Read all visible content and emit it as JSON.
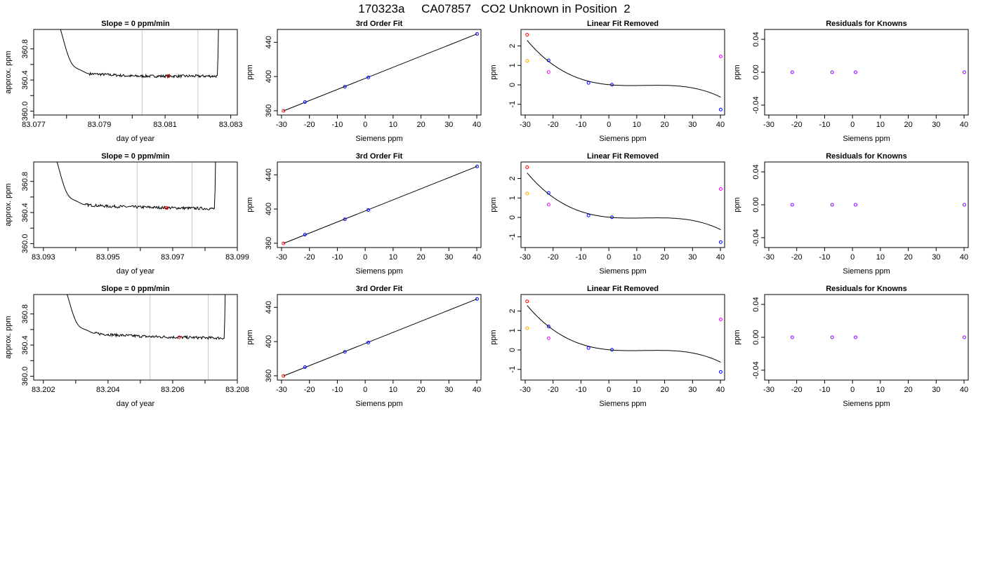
{
  "figure_title": "170323a     CA07857   CO2 Unknown in Position  2",
  "colors": {
    "trace": "#000000",
    "marker_window": "#c8c8c8",
    "point_red": "#ff0000",
    "point_orange": "#ffa500",
    "point_blue": "#0000ff",
    "point_magenta": "#ff00ff",
    "point_purple": "#7f00ff",
    "fit_line": "#000000"
  },
  "chart_data": [
    {
      "row": 0,
      "col": 0,
      "type": "line",
      "title": "Slope =  0  ppm/min",
      "xlabel": "day of year",
      "ylabel": "approx. ppm",
      "xlim": [
        83.077,
        83.0832
      ],
      "ylim": [
        359.95,
        361.05
      ],
      "xticks": [
        "83.077",
        "83.079",
        "83.081",
        "83.083"
      ],
      "xminor": [
        83.078,
        83.08,
        83.082
      ],
      "yticks": [
        "360.0",
        "360.4",
        "360.8"
      ],
      "window": [
        83.0803,
        83.082
      ],
      "trace": {
        "rise_start": 83.0776,
        "plateau_start": 83.0787,
        "plateau_end": 83.0826,
        "rise_end": 83.08265,
        "levels": [
          [
            83.0787,
            360.48
          ],
          [
            83.0792,
            360.47
          ],
          [
            83.08,
            360.45
          ],
          [
            83.081,
            360.45
          ],
          [
            83.0826,
            360.45
          ]
        ]
      },
      "marker": {
        "x": 83.0811,
        "y": 360.45,
        "color": "red"
      }
    },
    {
      "row": 0,
      "col": 1,
      "type": "scatter",
      "title": "3rd Order Fit",
      "xlabel": "Siemens ppm",
      "ylabel": "ppm",
      "xlim": [
        -31.5,
        41.5
      ],
      "ylim": [
        355,
        455
      ],
      "xticks": [
        "-30",
        "-20",
        "-10",
        "0",
        "10",
        "20",
        "30",
        "40"
      ],
      "yticks": [
        "360",
        "400",
        "440"
      ],
      "points": [
        {
          "x": -29.3,
          "y": 359.8,
          "color": "red"
        },
        {
          "x": -21.6,
          "y": 370.2,
          "color": "blue"
        },
        {
          "x": -7.3,
          "y": 388.0,
          "color": "blue"
        },
        {
          "x": 1.1,
          "y": 398.9,
          "color": "blue"
        },
        {
          "x": 40.1,
          "y": 449.8,
          "color": "blue"
        }
      ],
      "fit_line": [
        [
          -29.3,
          359.8
        ],
        [
          40.1,
          449.8
        ]
      ]
    },
    {
      "row": 0,
      "col": 2,
      "type": "scatter",
      "title": "Linear Fit Removed",
      "xlabel": "Siemens ppm",
      "ylabel": "ppm",
      "xlim": [
        -31.5,
        41.5
      ],
      "ylim": [
        -1.55,
        2.85
      ],
      "xticks": [
        "-30",
        "-20",
        "-10",
        "0",
        "10",
        "20",
        "30",
        "40"
      ],
      "yticks": [
        "-1",
        "0",
        "1",
        "2"
      ],
      "points": [
        {
          "x": -29.3,
          "y": 2.58,
          "color": "red"
        },
        {
          "x": -29.3,
          "y": 1.23,
          "color": "orange"
        },
        {
          "x": -21.6,
          "y": 1.26,
          "color": "blue"
        },
        {
          "x": -21.6,
          "y": 0.66,
          "color": "magenta"
        },
        {
          "x": -7.3,
          "y": 0.1,
          "color": "blue"
        },
        {
          "x": 1.1,
          "y": 0.01,
          "color": "blue"
        },
        {
          "x": 40.1,
          "y": -1.27,
          "color": "blue"
        },
        {
          "x": 40.1,
          "y": 1.46,
          "color": "magenta"
        }
      ],
      "cubic_coeffs": [
        0.01,
        -0.0136,
        0.00124,
        -3.24e-05
      ]
    },
    {
      "row": 0,
      "col": 3,
      "type": "scatter",
      "title": "Residuals for Knowns",
      "xlabel": "Siemens ppm",
      "ylabel": "ppm",
      "xlim": [
        -31.5,
        41.5
      ],
      "ylim": [
        -0.052,
        0.052
      ],
      "xticks": [
        "-30",
        "-20",
        "-10",
        "0",
        "10",
        "20",
        "30",
        "40"
      ],
      "yticks": [
        "-0.04",
        "0.00",
        "0.04"
      ],
      "points": [
        {
          "x": -21.6,
          "y": 0.0,
          "color": "purple"
        },
        {
          "x": -7.3,
          "y": 0.0,
          "color": "purple"
        },
        {
          "x": 1.1,
          "y": 0.0,
          "color": "purple"
        },
        {
          "x": 40.1,
          "y": 0.0,
          "color": "purple"
        }
      ]
    },
    {
      "row": 1,
      "col": 0,
      "type": "line",
      "title": "Slope =  0  ppm/min",
      "xlabel": "day of year",
      "ylabel": "approx. ppm",
      "xlim": [
        83.0927,
        83.099
      ],
      "ylim": [
        359.95,
        361.05
      ],
      "xticks": [
        "83.093",
        "83.095",
        "83.097",
        "83.099"
      ],
      "xminor": [
        83.094,
        83.096,
        83.098
      ],
      "yticks": [
        "360.0",
        "360.4",
        "360.8"
      ],
      "window": [
        83.0959,
        83.0976
      ],
      "trace": {
        "rise_start": 83.0932,
        "plateau_start": 83.0943,
        "plateau_end": 83.0983,
        "rise_end": 83.09835,
        "levels": [
          [
            83.0943,
            360.5
          ],
          [
            83.095,
            360.48
          ],
          [
            83.096,
            360.47
          ],
          [
            83.097,
            360.46
          ],
          [
            83.0983,
            360.45
          ]
        ]
      },
      "marker": {
        "x": 83.0968,
        "y": 360.46,
        "color": "red"
      }
    },
    {
      "row": 1,
      "col": 1,
      "type": "scatter",
      "title": "3rd Order Fit",
      "xlabel": "Siemens ppm",
      "ylabel": "ppm",
      "xlim": [
        -31.5,
        41.5
      ],
      "ylim": [
        355,
        455
      ],
      "xticks": [
        "-30",
        "-20",
        "-10",
        "0",
        "10",
        "20",
        "30",
        "40"
      ],
      "yticks": [
        "360",
        "400",
        "440"
      ],
      "points": [
        {
          "x": -29.3,
          "y": 359.8,
          "color": "red"
        },
        {
          "x": -21.6,
          "y": 370.2,
          "color": "blue"
        },
        {
          "x": -7.3,
          "y": 388.0,
          "color": "blue"
        },
        {
          "x": 1.1,
          "y": 398.9,
          "color": "blue"
        },
        {
          "x": 40.1,
          "y": 449.8,
          "color": "blue"
        }
      ],
      "fit_line": [
        [
          -29.3,
          359.8
        ],
        [
          40.1,
          449.8
        ]
      ]
    },
    {
      "row": 1,
      "col": 2,
      "type": "scatter",
      "title": "Linear Fit Removed",
      "xlabel": "Siemens ppm",
      "ylabel": "ppm",
      "xlim": [
        -31.5,
        41.5
      ],
      "ylim": [
        -1.55,
        2.85
      ],
      "xticks": [
        "-30",
        "-20",
        "-10",
        "0",
        "10",
        "20",
        "30",
        "40"
      ],
      "yticks": [
        "-1",
        "0",
        "1",
        "2"
      ],
      "points": [
        {
          "x": -29.3,
          "y": 2.58,
          "color": "red"
        },
        {
          "x": -29.3,
          "y": 1.23,
          "color": "orange"
        },
        {
          "x": -21.6,
          "y": 1.26,
          "color": "blue"
        },
        {
          "x": -21.6,
          "y": 0.66,
          "color": "magenta"
        },
        {
          "x": -7.3,
          "y": 0.1,
          "color": "blue"
        },
        {
          "x": 1.1,
          "y": 0.01,
          "color": "blue"
        },
        {
          "x": 40.1,
          "y": -1.27,
          "color": "blue"
        },
        {
          "x": 40.1,
          "y": 1.46,
          "color": "magenta"
        }
      ],
      "cubic_coeffs": [
        0.01,
        -0.0136,
        0.00124,
        -3.24e-05
      ]
    },
    {
      "row": 1,
      "col": 3,
      "type": "scatter",
      "title": "Residuals for Knowns",
      "xlabel": "Siemens ppm",
      "ylabel": "ppm",
      "xlim": [
        -31.5,
        41.5
      ],
      "ylim": [
        -0.052,
        0.052
      ],
      "xticks": [
        "-30",
        "-20",
        "-10",
        "0",
        "10",
        "20",
        "30",
        "40"
      ],
      "yticks": [
        "-0.04",
        "0.00",
        "0.04"
      ],
      "points": [
        {
          "x": -21.6,
          "y": 0.0,
          "color": "purple"
        },
        {
          "x": -7.3,
          "y": 0.0,
          "color": "purple"
        },
        {
          "x": 1.1,
          "y": 0.0,
          "color": "purple"
        },
        {
          "x": 40.1,
          "y": 0.0,
          "color": "purple"
        }
      ]
    },
    {
      "row": 2,
      "col": 0,
      "type": "line",
      "title": "Slope =  0  ppm/min",
      "xlabel": "day of year",
      "ylabel": "approx. ppm",
      "xlim": [
        83.2017,
        83.208
      ],
      "ylim": [
        359.95,
        361.05
      ],
      "xticks": [
        "83.202",
        "83.204",
        "83.206",
        "83.208"
      ],
      "xminor": [
        83.203,
        83.205,
        83.207
      ],
      "yticks": [
        "360.0",
        "360.4",
        "360.8"
      ],
      "window": [
        83.2053,
        83.2071
      ],
      "trace": {
        "rise_start": 83.2025,
        "plateau_start": 83.2036,
        "plateau_end": 83.2076,
        "rise_end": 83.20765,
        "levels": [
          [
            83.2036,
            360.55
          ],
          [
            83.2042,
            360.53
          ],
          [
            83.2052,
            360.51
          ],
          [
            83.2062,
            360.5
          ],
          [
            83.2076,
            360.49
          ]
        ]
      },
      "marker": {
        "x": 83.2062,
        "y": 360.5,
        "color": "red"
      }
    },
    {
      "row": 2,
      "col": 1,
      "type": "scatter",
      "title": "3rd Order Fit",
      "xlabel": "Siemens ppm",
      "ylabel": "ppm",
      "xlim": [
        -31.5,
        41.5
      ],
      "ylim": [
        355,
        455
      ],
      "xticks": [
        "-30",
        "-20",
        "-10",
        "0",
        "10",
        "20",
        "30",
        "40"
      ],
      "yticks": [
        "360",
        "400",
        "440"
      ],
      "points": [
        {
          "x": -29.3,
          "y": 359.8,
          "color": "red"
        },
        {
          "x": -21.6,
          "y": 370.2,
          "color": "blue"
        },
        {
          "x": -7.3,
          "y": 388.0,
          "color": "blue"
        },
        {
          "x": 1.1,
          "y": 398.9,
          "color": "blue"
        },
        {
          "x": 40.1,
          "y": 449.8,
          "color": "blue"
        }
      ],
      "fit_line": [
        [
          -29.3,
          359.8
        ],
        [
          40.1,
          449.8
        ]
      ]
    },
    {
      "row": 2,
      "col": 2,
      "type": "scatter",
      "title": "Linear Fit Removed",
      "xlabel": "Siemens ppm",
      "ylabel": "ppm",
      "xlim": [
        -31.5,
        41.5
      ],
      "ylim": [
        -1.55,
        2.85
      ],
      "xticks": [
        "-30",
        "-20",
        "-10",
        "0",
        "10",
        "20",
        "30",
        "40"
      ],
      "yticks": [
        "-1",
        "0",
        "1",
        "2"
      ],
      "points": [
        {
          "x": -29.3,
          "y": 2.5,
          "color": "red"
        },
        {
          "x": -29.3,
          "y": 1.12,
          "color": "orange"
        },
        {
          "x": -21.6,
          "y": 1.21,
          "color": "blue"
        },
        {
          "x": -21.6,
          "y": 0.6,
          "color": "magenta"
        },
        {
          "x": -7.3,
          "y": 0.1,
          "color": "blue"
        },
        {
          "x": 1.1,
          "y": 0.01,
          "color": "blue"
        },
        {
          "x": 40.1,
          "y": -1.13,
          "color": "blue"
        },
        {
          "x": 40.1,
          "y": 1.57,
          "color": "magenta"
        }
      ],
      "cubic_coeffs": [
        0.01,
        -0.0136,
        0.00124,
        -3.24e-05
      ]
    },
    {
      "row": 2,
      "col": 3,
      "type": "scatter",
      "title": "Residuals for Knowns",
      "xlabel": "Siemens ppm",
      "ylabel": "ppm",
      "xlim": [
        -31.5,
        41.5
      ],
      "ylim": [
        -0.052,
        0.052
      ],
      "xticks": [
        "-30",
        "-20",
        "-10",
        "0",
        "10",
        "20",
        "30",
        "40"
      ],
      "yticks": [
        "-0.04",
        "0.00",
        "0.04"
      ],
      "points": [
        {
          "x": -21.6,
          "y": 0.0,
          "color": "purple"
        },
        {
          "x": -7.3,
          "y": 0.0,
          "color": "purple"
        },
        {
          "x": 1.1,
          "y": 0.0,
          "color": "purple"
        },
        {
          "x": 40.1,
          "y": 0.0,
          "color": "purple"
        }
      ]
    }
  ]
}
